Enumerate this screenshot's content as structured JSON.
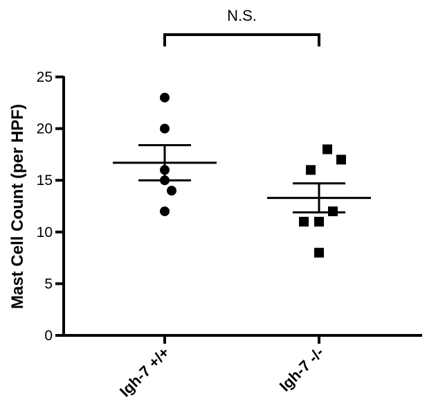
{
  "chart_data": {
    "type": "scatter",
    "ylabel": "Mast Cell  Count (per HPF)",
    "ylim": [
      0,
      25
    ],
    "yticks": [
      0,
      5,
      10,
      15,
      20,
      25
    ],
    "categories": [
      "Igh-7 +/+",
      "Igh-7 -/-"
    ],
    "series": [
      {
        "category": "Igh-7 +/+",
        "marker": "circle",
        "values": [
          23,
          20,
          16,
          15,
          14,
          12
        ],
        "mean": 16.7,
        "sem_upper": 18.4,
        "sem_lower": 15.0
      },
      {
        "category": "Igh-7 -/-",
        "marker": "square",
        "values": [
          18,
          17,
          16,
          12,
          11,
          11,
          8
        ],
        "mean": 13.3,
        "sem_upper": 14.7,
        "sem_lower": 11.9
      }
    ],
    "annotation": "N.S.",
    "grid": false,
    "color": "#000000"
  }
}
